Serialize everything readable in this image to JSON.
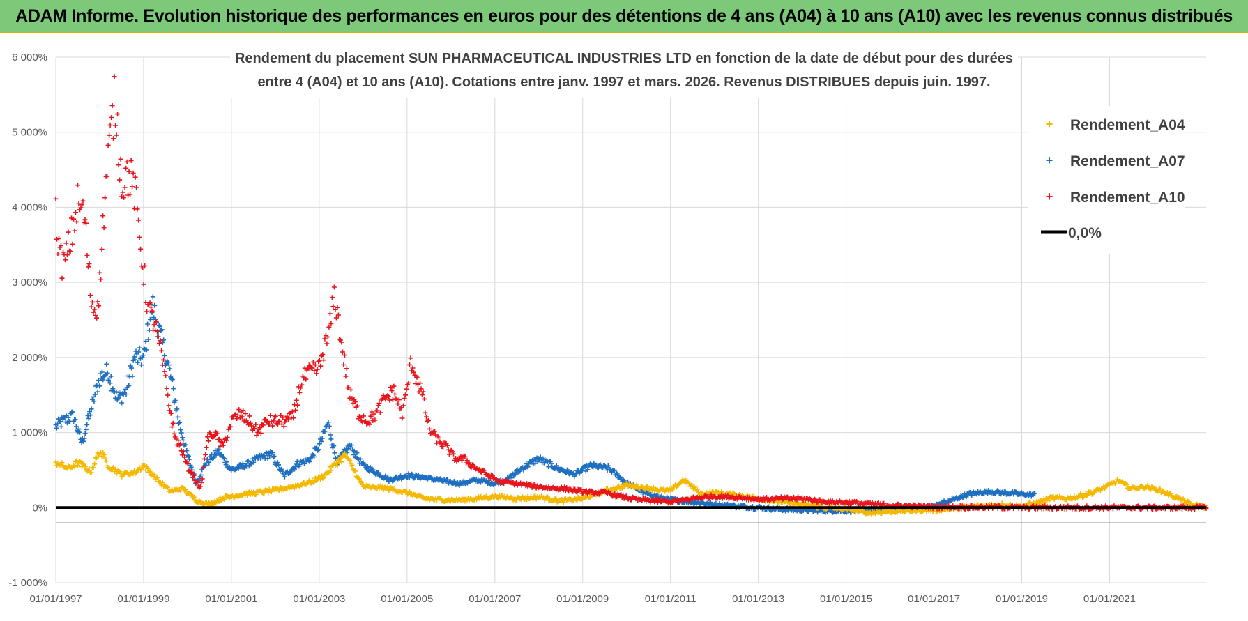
{
  "banner": {
    "title": "ADAM Informe. Evolution historique des performances en euros pour des détentions de 4 ans (A04) à 10 ans (A10) avec les revenus connus distribués"
  },
  "colors": {
    "A04": "#f5b800",
    "A07": "#1f6fc1",
    "A10": "#e8141c",
    "zero": "#000000",
    "grid": "#d9d9d9",
    "banner": "#7dc97a"
  },
  "chart_data": {
    "type": "scatter",
    "title_line1": "Rendement du placement SUN PHARMACEUTICAL INDUSTRIES LTD en fonction de la date de début pour des durées",
    "title_line2": "entre 4 (A04) et 10 ans (A10).  Cotations entre janv. 1997 et mars. 2026. Revenus DISTRIBUES depuis juin. 1997.",
    "xlabel": "",
    "ylabel": "",
    "xlim": [
      1997.0,
      2023.2
    ],
    "ylim": [
      -1000,
      6000
    ],
    "yticks": [
      6000,
      5000,
      4000,
      3000,
      2000,
      1000,
      0,
      -1000
    ],
    "ytick_labels": [
      "6 000%",
      "5 000%",
      "4 000%",
      "3 000%",
      "2 000%",
      "1 000%",
      "0%",
      "-1 000%"
    ],
    "xticks": [
      1997,
      1999,
      2001,
      2003,
      2005,
      2007,
      2009,
      2011,
      2013,
      2015,
      2017,
      2019,
      2021
    ],
    "xtick_labels": [
      "01/01/1997",
      "01/01/1999",
      "01/01/2001",
      "01/01/2003",
      "01/01/2005",
      "01/01/2007",
      "01/01/2009",
      "01/01/2011",
      "01/01/2013",
      "01/01/2015",
      "01/01/2017",
      "01/01/2019",
      "01/01/2021"
    ],
    "grid": true,
    "legend_position": "top-right",
    "legend": [
      "Rendement_A04",
      "Rendement_A07",
      "Rendement_A10",
      "0,0%"
    ],
    "series": [
      {
        "name": "Rendement_A04",
        "key": "A04",
        "x": [
          1997.0,
          1997.3,
          1997.5,
          1997.8,
          1998.0,
          1998.2,
          1998.5,
          1998.8,
          1999.0,
          1999.3,
          1999.6,
          1999.9,
          2000.2,
          2000.5,
          2000.8,
          2001.2,
          2001.6,
          2002.0,
          2002.4,
          2002.8,
          2003.1,
          2003.3,
          2003.6,
          2004.0,
          2004.5,
          2005.0,
          2005.4,
          2006.0,
          2006.6,
          2007.0,
          2007.5,
          2008.0,
          2008.5,
          2009.0,
          2009.5,
          2010.0,
          2010.5,
          2010.8,
          2011.0,
          2011.3,
          2011.7,
          2012.0,
          2012.5,
          2013.0,
          2013.5,
          2014.0,
          2014.5,
          2015.0,
          2015.5,
          2016.0,
          2016.5,
          2017.0,
          2017.5,
          2018.0,
          2018.5,
          2019.0,
          2019.4,
          2019.7,
          2020.0,
          2020.3,
          2020.6,
          2020.9,
          2021.2,
          2021.5,
          2021.8,
          2022.1,
          2022.5,
          2022.9,
          2023.2
        ],
        "y": [
          600,
          520,
          600,
          480,
          760,
          560,
          440,
          470,
          560,
          380,
          220,
          250,
          100,
          40,
          130,
          170,
          200,
          230,
          280,
          340,
          420,
          540,
          700,
          280,
          260,
          200,
          120,
          100,
          120,
          150,
          120,
          140,
          90,
          120,
          220,
          300,
          260,
          230,
          230,
          370,
          180,
          200,
          170,
          120,
          80,
          40,
          0,
          -20,
          -70,
          -50,
          -40,
          -30,
          -10,
          20,
          40,
          20,
          70,
          130,
          120,
          150,
          200,
          270,
          360,
          250,
          280,
          240,
          140,
          30,
          10
        ]
      },
      {
        "name": "Rendement_A07",
        "key": "A07",
        "x": [
          1997.0,
          1997.2,
          1997.4,
          1997.6,
          1997.8,
          1998.0,
          1998.2,
          1998.4,
          1998.6,
          1998.8,
          1999.0,
          1999.2,
          1999.4,
          1999.6,
          1999.8,
          2000.0,
          2000.2,
          2000.4,
          2000.7,
          2001.0,
          2001.3,
          2001.6,
          2001.9,
          2002.2,
          2002.5,
          2002.8,
          2003.0,
          2003.2,
          2003.4,
          2003.7,
          2004.0,
          2004.3,
          2004.6,
          2005.0,
          2005.4,
          2005.8,
          2006.2,
          2006.6,
          2007.0,
          2007.3,
          2007.6,
          2008.0,
          2008.4,
          2008.8,
          2009.2,
          2009.6,
          2010.0,
          2010.4,
          2010.8,
          2011.2,
          2011.6,
          2012.0,
          2012.5,
          2013.0,
          2013.5,
          2014.0,
          2014.5,
          2015.0,
          2015.5,
          2016.0,
          2016.5,
          2017.0,
          2017.4,
          2017.8,
          2018.2,
          2018.6,
          2019.0,
          2019.3
        ],
        "y": [
          1080,
          1160,
          1220,
          860,
          1300,
          1730,
          1820,
          1440,
          1550,
          2000,
          1980,
          2700,
          2250,
          1800,
          1150,
          700,
          320,
          580,
          750,
          500,
          560,
          650,
          720,
          420,
          580,
          650,
          820,
          1130,
          600,
          820,
          560,
          470,
          370,
          430,
          400,
          360,
          320,
          370,
          320,
          380,
          520,
          650,
          530,
          440,
          560,
          520,
          330,
          200,
          130,
          90,
          70,
          40,
          20,
          0,
          -20,
          -30,
          -40,
          -40,
          -40,
          -20,
          0,
          20,
          100,
          180,
          210,
          200,
          180,
          170
        ]
      },
      {
        "name": "Rendement_A10",
        "key": "A10",
        "x": [
          1997.0,
          1997.1,
          1997.2,
          1997.35,
          1997.5,
          1997.65,
          1997.8,
          1997.9,
          1998.0,
          1998.1,
          1998.2,
          1998.35,
          1998.5,
          1998.65,
          1998.8,
          1998.95,
          1999.1,
          1999.25,
          1999.4,
          1999.55,
          1999.7,
          1999.85,
          2000.0,
          2000.15,
          2000.3,
          2000.45,
          2000.6,
          2000.8,
          2001.0,
          2001.2,
          2001.4,
          2001.6,
          2001.8,
          2002.0,
          2002.2,
          2002.4,
          2002.6,
          2002.8,
          2003.0,
          2003.1,
          2003.2,
          2003.35,
          2003.5,
          2003.7,
          2003.9,
          2004.1,
          2004.3,
          2004.5,
          2004.7,
          2004.9,
          2005.1,
          2005.2,
          2005.35,
          2005.5,
          2005.7,
          2005.9,
          2006.1,
          2006.3,
          2006.5,
          2006.8,
          2007.1,
          2007.4,
          2007.7,
          2008.0,
          2008.3,
          2008.6,
          2008.9,
          2009.2,
          2009.5,
          2009.8,
          2010.1,
          2010.4,
          2010.7,
          2011.0,
          2011.3,
          2011.6,
          2012.0,
          2012.5,
          2013.0,
          2013.5,
          2014.0,
          2014.5,
          2015.0,
          2015.5,
          2016.0,
          2016.5,
          2017.0,
          2017.5,
          2018.0,
          2018.5,
          2019.0,
          2019.5,
          2020.0,
          2020.5,
          2021.0,
          2021.5,
          2022.0,
          2022.5,
          2023.0,
          2023.2
        ],
        "y": [
          3900,
          3300,
          3250,
          3600,
          4050,
          3900,
          2800,
          2600,
          2950,
          4000,
          4700,
          5450,
          4350,
          4450,
          4200,
          3400,
          2650,
          2450,
          2050,
          1500,
          950,
          800,
          550,
          400,
          250,
          900,
          1000,
          800,
          1150,
          1250,
          1150,
          1000,
          1150,
          1150,
          1150,
          1200,
          1700,
          1800,
          1850,
          2100,
          2250,
          2850,
          2200,
          1500,
          1250,
          1150,
          1250,
          1450,
          1550,
          1250,
          1950,
          1750,
          1500,
          1050,
          900,
          800,
          650,
          650,
          550,
          450,
          350,
          330,
          300,
          280,
          260,
          250,
          220,
          200,
          200,
          160,
          120,
          100,
          90,
          80,
          100,
          130,
          150,
          140,
          110,
          120,
          120,
          80,
          70,
          50,
          30,
          20,
          10,
          5,
          5,
          5,
          0,
          0,
          0,
          0,
          0,
          0,
          0,
          0,
          0,
          0
        ]
      }
    ]
  }
}
